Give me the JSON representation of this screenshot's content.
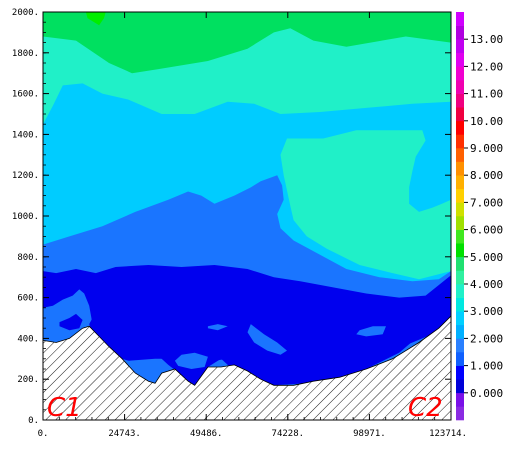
{
  "chart_data": {
    "type": "contour",
    "xlim": [
      0,
      123714
    ],
    "ylim": [
      0,
      2000
    ],
    "x_ticks": [
      0,
      24743,
      49486,
      74228,
      98971,
      123714
    ],
    "x_tick_labels": [
      "0.",
      "24743.",
      "49486.",
      "74228.",
      "98971.",
      "123714."
    ],
    "y_ticks": [
      0,
      200,
      400,
      600,
      800,
      1000,
      1200,
      1400,
      1600,
      1800,
      2000
    ],
    "y_tick_labels": [
      "0.",
      "200.",
      "400.",
      "600.",
      "800.",
      "1000.",
      "1200.",
      "1400.",
      "1600.",
      "1800.",
      "2000."
    ],
    "corner_labels": {
      "left": "C1",
      "right": "C2"
    },
    "colorbar": {
      "min": -1,
      "max": 14,
      "step": 0.5,
      "tick_values": [
        0,
        1,
        2,
        3,
        4,
        5,
        6,
        7,
        8,
        9,
        10,
        11,
        12,
        13
      ],
      "tick_labels": [
        "0.000",
        "1.000",
        "2.000",
        "3.000",
        "4.000",
        "5.000",
        "6.000",
        "7.000",
        "8.000",
        "9.000",
        "10.00",
        "11.00",
        "12.00",
        "13.00"
      ],
      "colors": [
        "#8a2be2",
        "#7a10e8",
        "#0000d8",
        "#0000ff",
        "#1060ff",
        "#2a80ff",
        "#00b0ff",
        "#00d0ff",
        "#00e8e0",
        "#20f0c8",
        "#30f0a0",
        "#20e070",
        "#00e000",
        "#40e820",
        "#a0e000",
        "#d0e000",
        "#ffd000",
        "#ffb000",
        "#ff9000",
        "#ff6000",
        "#ff3000",
        "#ff0000",
        "#f00040",
        "#f00080",
        "#f000b0",
        "#f000d0",
        "#e000f0",
        "#c000f0",
        "#b000e0",
        "#d000ff"
      ]
    },
    "layers": [
      {
        "level": 4.5,
        "color": "#20f0c8",
        "points": [
          [
            0,
            2000
          ],
          [
            123714,
            2000
          ],
          [
            123714,
            0
          ],
          [
            0,
            0
          ]
        ]
      },
      {
        "level": 5.5,
        "color": "#00e060",
        "points": [
          [
            0,
            2000
          ],
          [
            0,
            1880
          ],
          [
            10000,
            1860
          ],
          [
            20000,
            1750
          ],
          [
            27000,
            1700
          ],
          [
            35000,
            1720
          ],
          [
            50000,
            1760
          ],
          [
            62000,
            1820
          ],
          [
            70000,
            1900
          ],
          [
            75000,
            1920
          ],
          [
            82000,
            1860
          ],
          [
            92000,
            1830
          ],
          [
            110000,
            1880
          ],
          [
            123714,
            1850
          ],
          [
            123714,
            2000
          ]
        ]
      },
      {
        "level": 6,
        "color": "#00ee00",
        "points": [
          [
            13000,
            2000
          ],
          [
            13500,
            1970
          ],
          [
            17000,
            1935
          ],
          [
            18500,
            1970
          ],
          [
            19000,
            2000
          ]
        ]
      },
      {
        "level": 3.5,
        "color": "#00ccff",
        "points": [
          [
            0,
            1450
          ],
          [
            3000,
            1540
          ],
          [
            6000,
            1640
          ],
          [
            12000,
            1650
          ],
          [
            18000,
            1600
          ],
          [
            26000,
            1570
          ],
          [
            36000,
            1500
          ],
          [
            46000,
            1500
          ],
          [
            56000,
            1560
          ],
          [
            64000,
            1550
          ],
          [
            72000,
            1500
          ],
          [
            84000,
            1510
          ],
          [
            98000,
            1530
          ],
          [
            112000,
            1550
          ],
          [
            123714,
            1560
          ],
          [
            123714,
            1080
          ],
          [
            121000,
            1060
          ],
          [
            118000,
            1040
          ],
          [
            114000,
            1020
          ],
          [
            111000,
            1060
          ],
          [
            111000,
            1140
          ],
          [
            112000,
            1220
          ],
          [
            113000,
            1290
          ],
          [
            116000,
            1370
          ],
          [
            115000,
            1420
          ],
          [
            107000,
            1420
          ],
          [
            95000,
            1420
          ],
          [
            85000,
            1380
          ],
          [
            74000,
            1380
          ],
          [
            72000,
            1300
          ],
          [
            73000,
            1200
          ],
          [
            75000,
            1050
          ],
          [
            76000,
            980
          ],
          [
            80000,
            900
          ],
          [
            86000,
            840
          ],
          [
            96000,
            760
          ],
          [
            106000,
            720
          ],
          [
            114000,
            690
          ],
          [
            123714,
            730
          ],
          [
            123714,
            200
          ],
          [
            0,
            200
          ]
        ]
      },
      {
        "level": 2.5,
        "color": "#1a75ff",
        "points": [
          [
            0,
            860
          ],
          [
            8000,
            900
          ],
          [
            18000,
            950
          ],
          [
            28000,
            1020
          ],
          [
            38000,
            1080
          ],
          [
            44000,
            1120
          ],
          [
            48000,
            1100
          ],
          [
            52000,
            1060
          ],
          [
            58000,
            1100
          ],
          [
            63000,
            1140
          ],
          [
            66000,
            1170
          ],
          [
            71000,
            1200
          ],
          [
            72500,
            1150
          ],
          [
            73000,
            1080
          ],
          [
            71000,
            1010
          ],
          [
            72000,
            940
          ],
          [
            76000,
            880
          ],
          [
            84000,
            810
          ],
          [
            92000,
            740
          ],
          [
            102000,
            700
          ],
          [
            112000,
            680
          ],
          [
            120000,
            690
          ],
          [
            123714,
            730
          ],
          [
            123714,
            0
          ],
          [
            0,
            0
          ]
        ]
      },
      {
        "level": 1.5,
        "color": "#0000ee",
        "points": [
          [
            0,
            730
          ],
          [
            4000,
            720
          ],
          [
            10000,
            740
          ],
          [
            16000,
            720
          ],
          [
            22000,
            750
          ],
          [
            32000,
            760
          ],
          [
            42000,
            750
          ],
          [
            52000,
            760
          ],
          [
            62000,
            740
          ],
          [
            70000,
            700
          ],
          [
            78000,
            680
          ],
          [
            88000,
            650
          ],
          [
            98000,
            620
          ],
          [
            108000,
            600
          ],
          [
            116000,
            610
          ],
          [
            123714,
            710
          ],
          [
            123714,
            0
          ],
          [
            0,
            0
          ]
        ]
      },
      {
        "level": 2,
        "color": "#1a75ff",
        "points": [
          [
            0,
            550
          ],
          [
            3000,
            560
          ],
          [
            6000,
            590
          ],
          [
            9000,
            610
          ],
          [
            11000,
            640
          ],
          [
            12500,
            620
          ],
          [
            14000,
            560
          ],
          [
            15000,
            470
          ],
          [
            17000,
            400
          ],
          [
            20000,
            330
          ],
          [
            22000,
            290
          ],
          [
            24000,
            300
          ],
          [
            26000,
            340
          ],
          [
            30000,
            350
          ],
          [
            34000,
            330
          ],
          [
            38000,
            270
          ],
          [
            42000,
            220
          ],
          [
            46000,
            160
          ],
          [
            50000,
            260
          ],
          [
            54000,
            300
          ],
          [
            58000,
            240
          ],
          [
            62000,
            200
          ],
          [
            70000,
            170
          ],
          [
            80000,
            180
          ],
          [
            90000,
            200
          ],
          [
            98000,
            250
          ],
          [
            108000,
            330
          ],
          [
            116000,
            440
          ],
          [
            120000,
            500
          ],
          [
            123714,
            560
          ],
          [
            123714,
            0
          ],
          [
            0,
            0
          ]
        ]
      },
      {
        "level": 1.5,
        "color": "#0000ee",
        "points": [
          [
            5000,
            480
          ],
          [
            8000,
            500
          ],
          [
            10000,
            520
          ],
          [
            12000,
            490
          ],
          [
            11000,
            450
          ],
          [
            8000,
            440
          ],
          [
            5000,
            460
          ]
        ]
      },
      {
        "level": 1.5,
        "color": "#0000ee",
        "points": [
          [
            14000,
            470
          ],
          [
            16000,
            530
          ],
          [
            18000,
            560
          ],
          [
            22000,
            520
          ],
          [
            28000,
            460
          ],
          [
            34000,
            430
          ],
          [
            40000,
            390
          ],
          [
            44000,
            340
          ],
          [
            48000,
            330
          ],
          [
            52000,
            350
          ],
          [
            56000,
            420
          ],
          [
            60000,
            440
          ],
          [
            64000,
            400
          ],
          [
            68000,
            360
          ],
          [
            72000,
            320
          ],
          [
            76000,
            310
          ],
          [
            82000,
            330
          ],
          [
            86000,
            390
          ],
          [
            92000,
            430
          ],
          [
            98000,
            460
          ],
          [
            104000,
            500
          ],
          [
            110000,
            540
          ],
          [
            116000,
            560
          ],
          [
            120000,
            600
          ],
          [
            123714,
            640
          ],
          [
            123714,
            480
          ],
          [
            118000,
            420
          ],
          [
            112000,
            380
          ],
          [
            104000,
            330
          ],
          [
            96000,
            280
          ],
          [
            88000,
            250
          ],
          [
            78000,
            240
          ],
          [
            68000,
            250
          ],
          [
            60000,
            270
          ],
          [
            56000,
            300
          ],
          [
            52000,
            290
          ],
          [
            48000,
            250
          ],
          [
            44000,
            260
          ],
          [
            40000,
            300
          ],
          [
            34000,
            300
          ],
          [
            26000,
            290
          ],
          [
            20000,
            320
          ],
          [
            16000,
            380
          ]
        ]
      },
      {
        "level": 2,
        "color": "#1a75ff",
        "points": [
          [
            50000,
            460
          ],
          [
            53000,
            470
          ],
          [
            56000,
            460
          ],
          [
            53000,
            440
          ],
          [
            50000,
            450
          ]
        ]
      },
      {
        "level": 2,
        "color": "#1a75ff",
        "points": [
          [
            63000,
            470
          ],
          [
            67000,
            420
          ],
          [
            71000,
            380
          ],
          [
            74000,
            340
          ],
          [
            72000,
            320
          ],
          [
            68000,
            340
          ],
          [
            64000,
            380
          ],
          [
            62000,
            430
          ]
        ]
      },
      {
        "level": 2,
        "color": "#1a75ff",
        "points": [
          [
            40000,
            290
          ],
          [
            42000,
            320
          ],
          [
            46000,
            330
          ],
          [
            50000,
            310
          ],
          [
            49000,
            260
          ],
          [
            45000,
            250
          ],
          [
            41000,
            265
          ]
        ]
      },
      {
        "level": 2,
        "color": "#1a75ff",
        "points": [
          [
            96000,
            440
          ],
          [
            100000,
            460
          ],
          [
            104000,
            460
          ],
          [
            103000,
            420
          ],
          [
            98000,
            410
          ],
          [
            95000,
            420
          ]
        ]
      }
    ],
    "terrain": [
      [
        0,
        390
      ],
      [
        4000,
        380
      ],
      [
        8000,
        400
      ],
      [
        12000,
        450
      ],
      [
        14000,
        460
      ],
      [
        17000,
        410
      ],
      [
        20000,
        360
      ],
      [
        24000,
        300
      ],
      [
        28000,
        230
      ],
      [
        32000,
        190
      ],
      [
        34000,
        180
      ],
      [
        36000,
        230
      ],
      [
        40000,
        250
      ],
      [
        44000,
        190
      ],
      [
        46000,
        170
      ],
      [
        50000,
        260
      ],
      [
        54000,
        260
      ],
      [
        58000,
        270
      ],
      [
        62000,
        240
      ],
      [
        66000,
        200
      ],
      [
        70000,
        170
      ],
      [
        76000,
        170
      ],
      [
        82000,
        190
      ],
      [
        90000,
        210
      ],
      [
        98000,
        250
      ],
      [
        106000,
        300
      ],
      [
        114000,
        380
      ],
      [
        120000,
        450
      ],
      [
        123714,
        510
      ]
    ]
  }
}
